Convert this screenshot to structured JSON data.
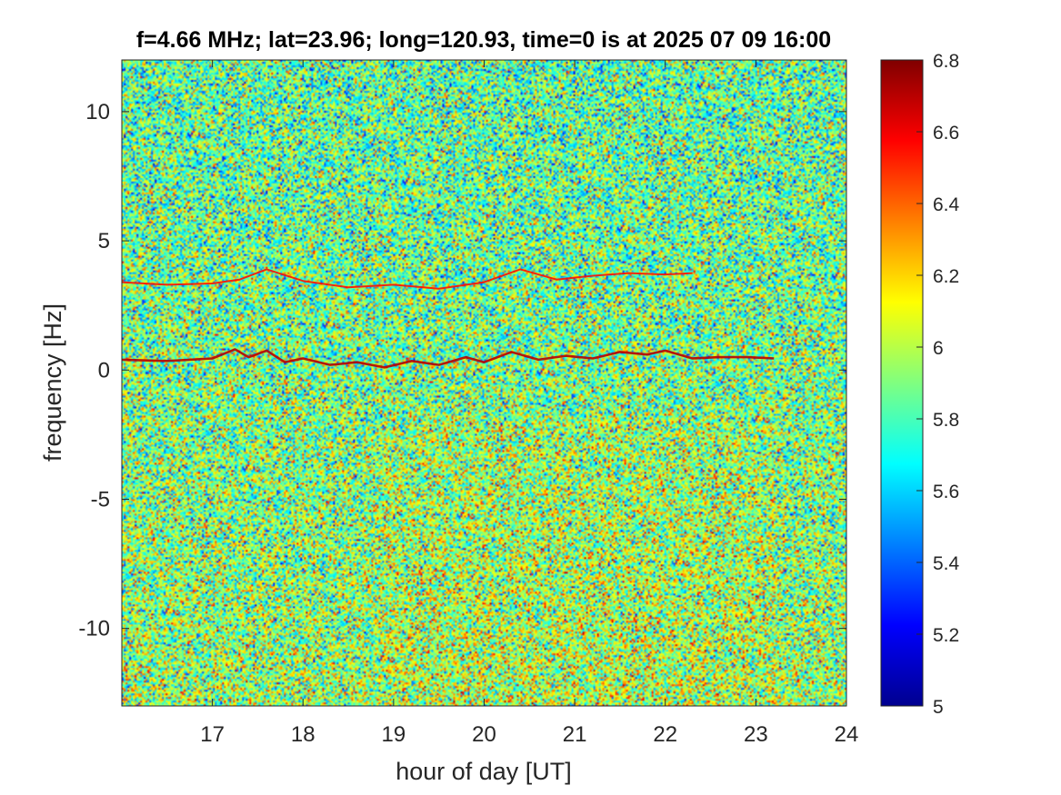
{
  "chart_data": {
    "type": "heatmap",
    "title": "f=4.66 MHz;  lat=23.96; long=120.93, time=0 is at 2025 07 09 16:00",
    "xlabel": "hour of day [UT]",
    "ylabel": "frequency [Hz]",
    "xlim": [
      16,
      24
    ],
    "ylim": [
      -13,
      12
    ],
    "xticks": [
      17,
      18,
      19,
      20,
      21,
      22,
      23,
      24
    ],
    "xtick_labels": [
      "17",
      "18",
      "19",
      "20",
      "21",
      "22",
      "23",
      "24"
    ],
    "yticks": [
      10,
      5,
      0,
      -5,
      -10
    ],
    "ytick_labels": [
      "10",
      "5",
      "0",
      "-5",
      "-10"
    ],
    "colormap": "jet",
    "clim": [
      5,
      6.8
    ],
    "colorbar_ticks": [
      6.8,
      6.6,
      6.4,
      6.2,
      6,
      5.8,
      5.6,
      5.4,
      5.2,
      5
    ],
    "colorbar_tick_labels": [
      "6.8",
      "6.6",
      "6.4",
      "6.2",
      "6",
      "5.8",
      "5.6",
      "5.4",
      "5.2",
      "5"
    ],
    "background_level": 5.9,
    "traces": [
      {
        "level": 6.7,
        "x": [
          16.0,
          16.5,
          17.0,
          17.25,
          17.4,
          17.6,
          17.8,
          18.0,
          18.3,
          18.6,
          18.9,
          19.2,
          19.5,
          19.8,
          20.0,
          20.3,
          20.6,
          20.9,
          21.2,
          21.5,
          21.8,
          22.0,
          22.3,
          22.6,
          22.9,
          23.2
        ],
        "y": [
          0.4,
          0.35,
          0.45,
          0.8,
          0.5,
          0.75,
          0.3,
          0.45,
          0.2,
          0.3,
          0.1,
          0.35,
          0.2,
          0.5,
          0.3,
          0.7,
          0.4,
          0.55,
          0.45,
          0.7,
          0.6,
          0.75,
          0.45,
          0.5,
          0.5,
          0.45
        ]
      },
      {
        "level": 6.55,
        "x": [
          16.0,
          16.5,
          17.0,
          17.3,
          17.6,
          18.0,
          18.5,
          19.0,
          19.5,
          20.0,
          20.4,
          20.8,
          21.2,
          21.6,
          22.0,
          22.3
        ],
        "y": [
          3.4,
          3.3,
          3.35,
          3.5,
          3.9,
          3.45,
          3.2,
          3.3,
          3.15,
          3.4,
          3.9,
          3.5,
          3.65,
          3.75,
          3.7,
          3.75
        ]
      }
    ]
  }
}
